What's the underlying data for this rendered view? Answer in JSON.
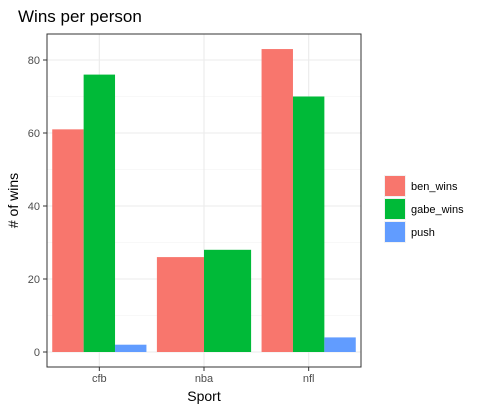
{
  "chart_data": {
    "type": "bar",
    "title": "Wins per person",
    "xlabel": "Sport",
    "ylabel": "# of wins",
    "categories": [
      "cfb",
      "nba",
      "nfl"
    ],
    "series": [
      {
        "name": "ben_wins",
        "color": "#F8766D",
        "values": [
          61,
          26,
          83
        ]
      },
      {
        "name": "gabe_wins",
        "color": "#00BA38",
        "values": [
          76,
          28,
          70
        ]
      },
      {
        "name": "push",
        "color": "#619CFF",
        "values": [
          2,
          null,
          4
        ]
      }
    ],
    "ylim": [
      0,
      88
    ],
    "yticks": [
      0,
      20,
      40,
      60,
      80
    ],
    "grid": true,
    "legend_position": "right"
  }
}
